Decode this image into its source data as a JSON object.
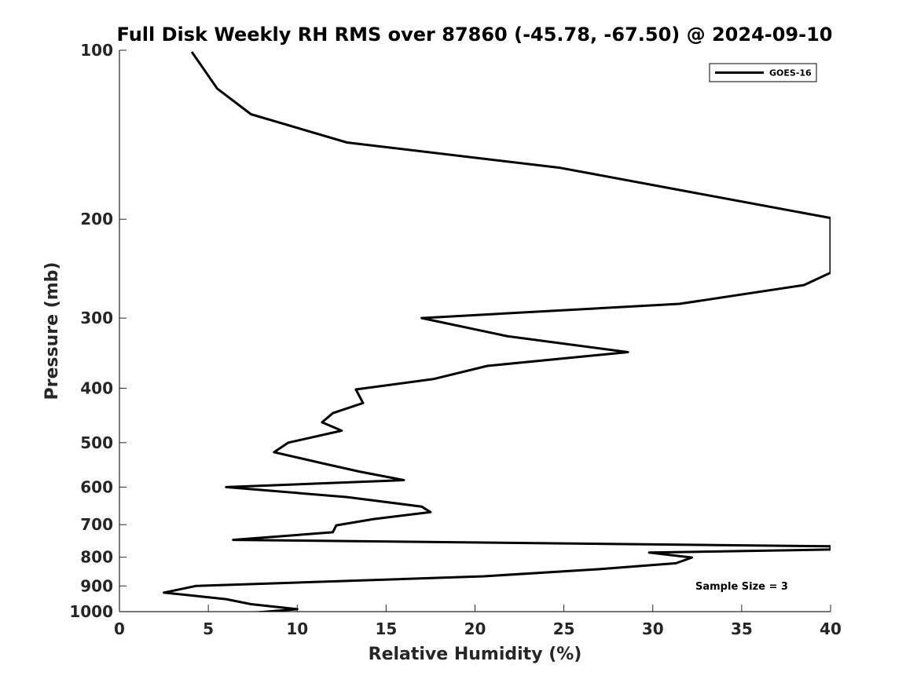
{
  "chart_data": {
    "type": "line",
    "title": "Full Disk Weekly RH RMS over 87860 (-45.78, -67.50) @ 2024-09-10",
    "xlabel": "Relative Humidity (%)",
    "ylabel": "Pressure (mb)",
    "xlim": [
      0,
      40
    ],
    "ylim": [
      100,
      1000
    ],
    "y_scale": "log",
    "y_reversed": true,
    "grid": false,
    "legend_position": "top-right",
    "xticks": [
      "0",
      "5",
      "10",
      "15",
      "20",
      "25",
      "30",
      "35",
      "40"
    ],
    "yticks": [
      "100",
      "200",
      "300",
      "400",
      "500",
      "600",
      "700",
      "800",
      "900",
      "1000"
    ],
    "annotation": "Sample Size = 3",
    "series": [
      {
        "name": "GOES-16",
        "color": "#000000",
        "x": [
          4.1,
          5.5,
          7.4,
          12.8,
          24.8,
          40.0,
          40.0,
          38.5,
          31.5,
          17.0,
          21.8,
          28.6,
          20.7,
          17.7,
          13.3,
          13.7,
          12.0,
          11.4,
          12.5,
          9.5,
          8.7,
          11.5,
          13.5,
          16.0,
          6.0,
          12.8,
          17.0,
          17.5,
          14.3,
          12.2,
          12.0,
          6.4,
          40.0,
          40.0,
          29.8,
          32.2,
          31.3,
          27.0,
          20.5,
          4.3,
          2.5,
          6.0,
          7.4,
          10.0,
          6.6
        ],
        "y": [
          101,
          117,
          130,
          146,
          162,
          199,
          249,
          262,
          283,
          300,
          323,
          345,
          365,
          385,
          402,
          425,
          443,
          460,
          476,
          500,
          520,
          545,
          563,
          583,
          600,
          625,
          650,
          665,
          684,
          702,
          722,
          745,
          765,
          775,
          785,
          801,
          820,
          840,
          865,
          900,
          925,
          950,
          970,
          990,
          1010
        ]
      }
    ]
  }
}
